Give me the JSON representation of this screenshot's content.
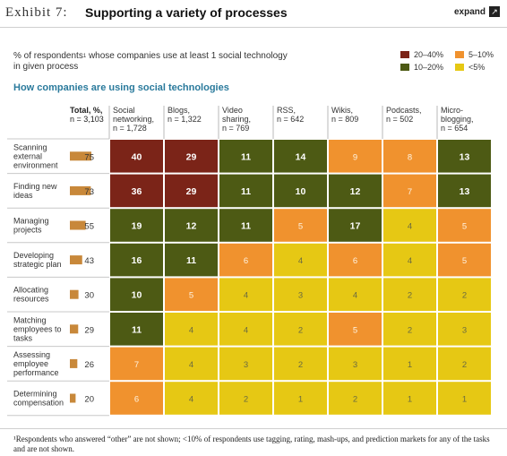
{
  "header": {
    "exhibit": "Exhibit 7:",
    "title": "Supporting a variety of processes",
    "expand_label": "expand",
    "expand_icon": "expand-arrow-icon"
  },
  "subtitle": {
    "text_a": "% of respondents",
    "footnote_mark": "1",
    "text_b": " whose companies use at least 1 social technology in given process"
  },
  "section_title": "How companies are using social technologies",
  "legend": [
    {
      "label": "20–40%",
      "color": "#7b2418"
    },
    {
      "label": "5–10%",
      "color": "#f0922e"
    },
    {
      "label": "10–20%",
      "color": "#4d5a14"
    },
    {
      "label": "<5%",
      "color": "#e6c814"
    }
  ],
  "chart_data": {
    "type": "heatmap",
    "total_header": [
      "Total, %,",
      "n = 3,103"
    ],
    "columns": [
      {
        "lines": [
          "Social",
          "networking,",
          "n = 1,728"
        ]
      },
      {
        "lines": [
          "Blogs,",
          "n = 1,322"
        ]
      },
      {
        "lines": [
          "Video",
          "sharing,",
          "n = 769"
        ]
      },
      {
        "lines": [
          "RSS,",
          "n = 642"
        ]
      },
      {
        "lines": [
          "Wikis,",
          "n = 809"
        ]
      },
      {
        "lines": [
          "Podcasts,",
          "n = 502"
        ]
      },
      {
        "lines": [
          "Micro-",
          "blogging,",
          "n = 654"
        ]
      }
    ],
    "rows": [
      {
        "lines": [
          "Scanning",
          "external",
          "environment"
        ],
        "total": 75,
        "values": [
          40,
          29,
          11,
          14,
          9,
          8,
          13
        ]
      },
      {
        "lines": [
          "Finding new",
          "ideas"
        ],
        "total": 73,
        "values": [
          36,
          29,
          11,
          10,
          12,
          7,
          13
        ]
      },
      {
        "lines": [
          "Managing",
          "projects"
        ],
        "total": 55,
        "values": [
          19,
          12,
          11,
          5,
          17,
          4,
          5
        ]
      },
      {
        "lines": [
          "Developing",
          "strategic plan"
        ],
        "total": 43,
        "values": [
          16,
          11,
          6,
          4,
          6,
          4,
          5
        ]
      },
      {
        "lines": [
          "Allocating",
          "resources"
        ],
        "total": 30,
        "values": [
          10,
          5,
          4,
          3,
          4,
          2,
          2
        ]
      },
      {
        "lines": [
          "Matching",
          "employees to",
          "tasks"
        ],
        "total": 29,
        "values": [
          11,
          4,
          4,
          2,
          5,
          2,
          3
        ]
      },
      {
        "lines": [
          "Assessing",
          "employee",
          "performance"
        ],
        "total": 26,
        "values": [
          7,
          4,
          3,
          2,
          3,
          1,
          2
        ]
      },
      {
        "lines": [
          "Determining",
          "compensation"
        ],
        "total": 20,
        "values": [
          6,
          4,
          2,
          1,
          2,
          1,
          1
        ]
      }
    ],
    "colors": {
      "high": "#7b2418",
      "mid": "#4d5a14",
      "low": "#f0922e",
      "min": "#e6c814",
      "bar": "#c8883a"
    }
  },
  "footnote": "¹Respondents who answered “other” are not shown; <10% of respondents use tagging, rating, mash-ups, and prediction markets for any of the tasks and are not shown."
}
